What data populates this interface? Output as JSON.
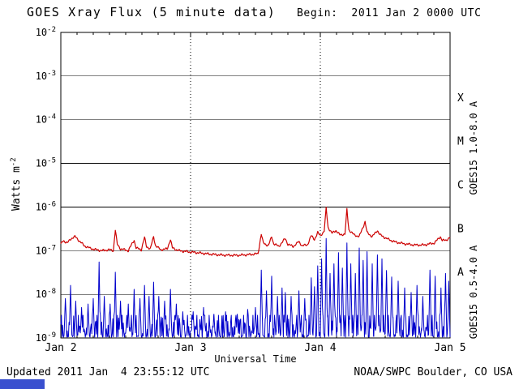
{
  "chart_data": {
    "type": "line",
    "title": "GOES Xray Flux (5 minute data)",
    "begin_label": "Begin:  2011 Jan 2 0000 UTC",
    "xlabel": "Universal Time",
    "ylabel_text": "Watts m",
    "ylabel_sup": "-2",
    "x_range_days": [
      0,
      3
    ],
    "y_log_range": [
      -9,
      -2
    ],
    "y_tick_exponents": [
      -2,
      -3,
      -4,
      -5,
      -6,
      -7,
      -8,
      -9
    ],
    "x_ticks": [
      {
        "t": 0,
        "label": "Jan 2"
      },
      {
        "t": 1,
        "label": "Jan 3"
      },
      {
        "t": 2,
        "label": "Jan 4"
      },
      {
        "t": 3,
        "label": "Jan 5"
      }
    ],
    "vertical_dotted_gridlines_days": [
      1,
      2
    ],
    "horizontal_decade_lines": [
      -3,
      -4,
      -5,
      -6,
      -7,
      -8
    ],
    "flare_classes": [
      {
        "label": "X",
        "log_mid": -3.5
      },
      {
        "label": "M",
        "log_mid": -4.5
      },
      {
        "label": "C",
        "log_mid": -5.5
      },
      {
        "label": "B",
        "log_mid": -6.5
      },
      {
        "label": "A",
        "log_mid": -7.5
      }
    ],
    "series": [
      {
        "name": "GOES15 1.0-8.0 A",
        "color": "#cc0000",
        "label_center_log": -4.65,
        "points": [
          [
            0.0,
            1.4e-07
          ],
          [
            0.02,
            1.7e-07
          ],
          [
            0.05,
            1.5e-07
          ],
          [
            0.08,
            1.9e-07
          ],
          [
            0.11,
            2.1e-07
          ],
          [
            0.14,
            1.7e-07
          ],
          [
            0.18,
            1.3e-07
          ],
          [
            0.22,
            1.15e-07
          ],
          [
            0.27,
            1.05e-07
          ],
          [
            0.32,
            1e-07
          ],
          [
            0.37,
            1.05e-07
          ],
          [
            0.405,
            1e-07
          ],
          [
            0.42,
            3e-07
          ],
          [
            0.435,
            1.4e-07
          ],
          [
            0.46,
            1.1e-07
          ],
          [
            0.52,
            1e-07
          ],
          [
            0.565,
            1.75e-07
          ],
          [
            0.58,
            1.15e-07
          ],
          [
            0.62,
            1.05e-07
          ],
          [
            0.645,
            2e-07
          ],
          [
            0.66,
            1.25e-07
          ],
          [
            0.69,
            1.1e-07
          ],
          [
            0.715,
            2.1e-07
          ],
          [
            0.73,
            1.3e-07
          ],
          [
            0.77,
            1.05e-07
          ],
          [
            0.82,
            1.1e-07
          ],
          [
            0.845,
            1.8e-07
          ],
          [
            0.86,
            1.15e-07
          ],
          [
            0.91,
            1e-07
          ],
          [
            0.97,
            9.5e-08
          ],
          [
            1.05,
            9e-08
          ],
          [
            1.15,
            8.3e-08
          ],
          [
            1.25,
            7.9e-08
          ],
          [
            1.35,
            7.8e-08
          ],
          [
            1.45,
            8.1e-08
          ],
          [
            1.52,
            8.5e-08
          ],
          [
            1.545,
            2.4e-07
          ],
          [
            1.56,
            1.5e-07
          ],
          [
            1.6,
            1.3e-07
          ],
          [
            1.625,
            2.1e-07
          ],
          [
            1.64,
            1.45e-07
          ],
          [
            1.68,
            1.25e-07
          ],
          [
            1.73,
            1.9e-07
          ],
          [
            1.75,
            1.4e-07
          ],
          [
            1.79,
            1.25e-07
          ],
          [
            1.835,
            1.6e-07
          ],
          [
            1.86,
            1.3e-07
          ],
          [
            1.9,
            1.35e-07
          ],
          [
            1.93,
            2.2e-07
          ],
          [
            1.955,
            1.8e-07
          ],
          [
            1.98,
            2.6e-07
          ],
          [
            2.0,
            2.2e-07
          ],
          [
            2.03,
            2.8e-07
          ],
          [
            2.045,
            9.5e-07
          ],
          [
            2.06,
            3.4e-07
          ],
          [
            2.09,
            2.5e-07
          ],
          [
            2.12,
            2.9e-07
          ],
          [
            2.15,
            2.3e-07
          ],
          [
            2.19,
            2.4e-07
          ],
          [
            2.205,
            8.8e-07
          ],
          [
            2.22,
            3e-07
          ],
          [
            2.26,
            2.3e-07
          ],
          [
            2.3,
            2.1e-07
          ],
          [
            2.345,
            4.6e-07
          ],
          [
            2.36,
            2.6e-07
          ],
          [
            2.4,
            2.1e-07
          ],
          [
            2.44,
            2.9e-07
          ],
          [
            2.46,
            2.3e-07
          ],
          [
            2.51,
            1.9e-07
          ],
          [
            2.57,
            1.6e-07
          ],
          [
            2.64,
            1.45e-07
          ],
          [
            2.72,
            1.35e-07
          ],
          [
            2.8,
            1.35e-07
          ],
          [
            2.88,
            1.5e-07
          ],
          [
            2.925,
            2.1e-07
          ],
          [
            2.94,
            1.7e-07
          ],
          [
            2.97,
            1.75e-07
          ],
          [
            3.0,
            2e-07
          ]
        ]
      },
      {
        "name": "GOES15 0.5-4.0 A",
        "color": "#0000cc",
        "label_center_log": -7.95,
        "baseline_flux": 1.1e-09,
        "spike_half_width_days": 0.01,
        "spikes": [
          [
            0.035,
            8e-09
          ],
          [
            0.075,
            1.6e-08
          ],
          [
            0.115,
            7e-09
          ],
          [
            0.16,
            5e-09
          ],
          [
            0.21,
            6e-09
          ],
          [
            0.25,
            8e-09
          ],
          [
            0.295,
            5.5e-08
          ],
          [
            0.335,
            9e-09
          ],
          [
            0.38,
            6e-09
          ],
          [
            0.42,
            3.2e-08
          ],
          [
            0.46,
            7e-09
          ],
          [
            0.52,
            6e-09
          ],
          [
            0.565,
            1.3e-08
          ],
          [
            0.61,
            8e-09
          ],
          [
            0.645,
            1.6e-08
          ],
          [
            0.68,
            9e-09
          ],
          [
            0.715,
            1.9e-08
          ],
          [
            0.755,
            9e-09
          ],
          [
            0.8,
            7e-09
          ],
          [
            0.845,
            1.3e-08
          ],
          [
            0.89,
            6e-09
          ],
          [
            0.94,
            4e-09
          ],
          [
            1.02,
            4e-09
          ],
          [
            1.1,
            5e-09
          ],
          [
            1.18,
            3.5e-09
          ],
          [
            1.27,
            4e-09
          ],
          [
            1.36,
            3.5e-09
          ],
          [
            1.44,
            4.5e-09
          ],
          [
            1.5,
            5e-09
          ],
          [
            1.545,
            3.6e-08
          ],
          [
            1.585,
            1.2e-08
          ],
          [
            1.625,
            2.6e-08
          ],
          [
            1.67,
            9e-09
          ],
          [
            1.705,
            1.4e-08
          ],
          [
            1.73,
            1.1e-08
          ],
          [
            1.775,
            9e-09
          ],
          [
            1.835,
            1.2e-08
          ],
          [
            1.88,
            8e-09
          ],
          [
            1.93,
            2.4e-08
          ],
          [
            1.955,
            1.5e-08
          ],
          [
            1.98,
            4.5e-08
          ],
          [
            2.01,
            6.5e-08
          ],
          [
            2.045,
            1.9e-07
          ],
          [
            2.075,
            3e-08
          ],
          [
            2.105,
            5e-08
          ],
          [
            2.14,
            9e-08
          ],
          [
            2.17,
            4e-08
          ],
          [
            2.205,
            1.5e-07
          ],
          [
            2.235,
            5e-08
          ],
          [
            2.27,
            3e-08
          ],
          [
            2.3,
            1.15e-07
          ],
          [
            2.33,
            6e-08
          ],
          [
            2.36,
            9.5e-08
          ],
          [
            2.4,
            5e-08
          ],
          [
            2.44,
            8e-08
          ],
          [
            2.475,
            6.5e-08
          ],
          [
            2.51,
            3.5e-08
          ],
          [
            2.55,
            2.5e-08
          ],
          [
            2.6,
            2e-08
          ],
          [
            2.65,
            1.4e-08
          ],
          [
            2.7,
            1.1e-08
          ],
          [
            2.745,
            1.6e-08
          ],
          [
            2.79,
            9e-09
          ],
          [
            2.845,
            3.6e-08
          ],
          [
            2.885,
            2.6e-08
          ],
          [
            2.93,
            1.4e-08
          ],
          [
            2.965,
            3e-08
          ],
          [
            2.99,
            2e-08
          ]
        ]
      }
    ],
    "footer": {
      "updated": "Updated 2011 Jan  4 23:55:12 UTC",
      "credit": "NOAA/SWPC Boulder, CO USA"
    },
    "artifact_color": "#3a50cf"
  }
}
